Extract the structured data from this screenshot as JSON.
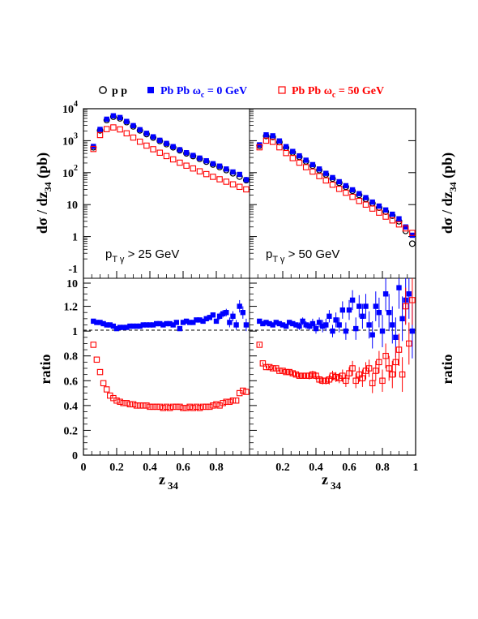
{
  "legend": {
    "pp": "p p",
    "pbpb0_prefix": "Pb Pb ",
    "pbpb0_omega": "ω",
    "pbpb0_sub": "c",
    "pbpb0_suffix": " = 0 GeV",
    "pbpb50_prefix": "Pb Pb ",
    "pbpb50_omega": "ω",
    "pbpb50_sub": "c",
    "pbpb50_suffix": " = 50 GeV"
  },
  "colors": {
    "pp": "#000000",
    "pbpb0": "#0000ff",
    "pbpb50": "#ff0000"
  },
  "axes": {
    "ylabel_top_main": "dσ / dz",
    "ylabel_top_sub": "34",
    "ylabel_top_unit": " (pb)",
    "ylabel_bottom": "ratio",
    "xlabel_main": "z",
    "xlabel_sub": "34",
    "top_yticks": [
      {
        "label": "10",
        "sup": "4",
        "value": 10000
      },
      {
        "label": "10",
        "sup": "3",
        "value": 1000
      },
      {
        "label": "10",
        "sup": "2",
        "value": 100
      },
      {
        "label": "10",
        "sup": "",
        "value": 10
      },
      {
        "label": "1",
        "sup": "",
        "value": 1
      },
      {
        "label": "-1",
        "sup": "",
        "value": 0.1
      }
    ],
    "bottom_yticks": [
      "10",
      "1.2",
      "1",
      "0.8",
      "0.6",
      "0.4",
      "0.2",
      "0"
    ],
    "xticks_left": [
      "0",
      "0.2",
      "0.4",
      "0.6",
      "0.8"
    ],
    "xticks_right": [
      "0.2",
      "0.4",
      "0.6",
      "0.8",
      "1"
    ]
  },
  "panel_labels": {
    "left_prefix": "p",
    "left_sub": "T γ",
    "left_suffix": " > 25 GeV",
    "right_prefix": "p",
    "right_sub": "T γ",
    "right_suffix": " > 50 GeV"
  },
  "chart_data": [
    {
      "type": "scatter",
      "panel": "top-left",
      "xlabel": "z 34",
      "ylabel": "dσ / dz 34 (pb)",
      "yscale": "log",
      "ylim": [
        0.1,
        10000
      ],
      "xlim": [
        0,
        1
      ],
      "series": [
        {
          "name": "p p",
          "marker": "open-circle",
          "x": [
            0.06,
            0.1,
            0.14,
            0.18,
            0.22,
            0.26,
            0.3,
            0.34,
            0.38,
            0.42,
            0.46,
            0.5,
            0.54,
            0.58,
            0.62,
            0.66,
            0.7,
            0.74,
            0.78,
            0.82,
            0.86,
            0.9,
            0.94,
            0.98
          ],
          "y": [
            620,
            2100,
            4400,
            5600,
            5000,
            3800,
            2800,
            2100,
            1600,
            1250,
            980,
            780,
            620,
            500,
            400,
            330,
            270,
            220,
            180,
            150,
            120,
            95,
            75,
            58
          ]
        },
        {
          "name": "Pb Pb ωc = 0 GeV",
          "marker": "filled-square",
          "x": [
            0.06,
            0.1,
            0.14,
            0.18,
            0.22,
            0.26,
            0.3,
            0.34,
            0.38,
            0.42,
            0.46,
            0.5,
            0.54,
            0.58,
            0.62,
            0.66,
            0.7,
            0.74,
            0.78,
            0.82,
            0.86,
            0.9,
            0.94,
            0.98
          ],
          "y": [
            660,
            2250,
            4700,
            6000,
            5300,
            4000,
            2950,
            2200,
            1700,
            1320,
            1030,
            820,
            650,
            520,
            420,
            345,
            285,
            235,
            190,
            160,
            130,
            105,
            88,
            60
          ]
        },
        {
          "name": "Pb Pb ωc = 50 GeV",
          "marker": "open-square",
          "x": [
            0.06,
            0.1,
            0.14,
            0.18,
            0.22,
            0.26,
            0.3,
            0.34,
            0.38,
            0.42,
            0.46,
            0.5,
            0.54,
            0.58,
            0.62,
            0.66,
            0.7,
            0.74,
            0.78,
            0.82,
            0.86,
            0.9,
            0.94,
            0.98
          ],
          "y": [
            550,
            1500,
            2300,
            2600,
            2250,
            1700,
            1250,
            930,
            700,
            540,
            420,
            330,
            260,
            205,
            165,
            135,
            110,
            90,
            74,
            62,
            52,
            43,
            36,
            30
          ]
        }
      ]
    },
    {
      "type": "scatter",
      "panel": "top-right",
      "xlabel": "z 34",
      "ylabel": "dσ / dz 34 (pb)",
      "yscale": "log",
      "ylim": [
        0.1,
        10000
      ],
      "xlim": [
        0,
        1
      ],
      "series": [
        {
          "name": "p p",
          "marker": "open-circle",
          "x": [
            0.06,
            0.1,
            0.14,
            0.18,
            0.22,
            0.26,
            0.3,
            0.34,
            0.38,
            0.42,
            0.46,
            0.5,
            0.54,
            0.58,
            0.62,
            0.66,
            0.7,
            0.74,
            0.78,
            0.82,
            0.86,
            0.9,
            0.94,
            0.98
          ],
          "y": [
            700,
            1400,
            1300,
            900,
            600,
            430,
            310,
            225,
            165,
            120,
            88,
            65,
            48,
            36,
            27,
            20,
            15,
            11,
            8,
            6,
            4.5,
            3,
            1.5,
            0.6
          ]
        },
        {
          "name": "Pb Pb ωc = 0 GeV",
          "marker": "filled-square",
          "x": [
            0.06,
            0.1,
            0.14,
            0.18,
            0.22,
            0.26,
            0.3,
            0.34,
            0.38,
            0.42,
            0.46,
            0.5,
            0.54,
            0.58,
            0.62,
            0.66,
            0.7,
            0.74,
            0.78,
            0.82,
            0.86,
            0.9,
            0.94,
            0.98
          ],
          "y": [
            740,
            1520,
            1420,
            980,
            650,
            460,
            335,
            245,
            178,
            130,
            95,
            70,
            52,
            39,
            29,
            22,
            16.5,
            12,
            9,
            6.8,
            5,
            3.6,
            2,
            1.1
          ]
        },
        {
          "name": "Pb Pb ωc = 50 GeV",
          "marker": "open-square",
          "x": [
            0.06,
            0.1,
            0.14,
            0.18,
            0.22,
            0.26,
            0.3,
            0.34,
            0.38,
            0.42,
            0.46,
            0.5,
            0.54,
            0.58,
            0.62,
            0.66,
            0.7,
            0.74,
            0.78,
            0.82,
            0.86,
            0.9,
            0.94,
            0.98
          ],
          "y": [
            620,
            1000,
            920,
            620,
            410,
            285,
            205,
            148,
            108,
            78,
            57,
            42,
            31,
            23.5,
            17.5,
            13,
            10,
            7.5,
            5.6,
            4.2,
            3.2,
            2.4,
            1.8,
            1.3
          ]
        }
      ]
    },
    {
      "type": "scatter",
      "panel": "bottom-left",
      "xlabel": "z 34",
      "ylabel": "ratio",
      "ylim": [
        0,
        1.4
      ],
      "xlim": [
        0,
        1
      ],
      "series": [
        {
          "name": "Pb Pb ωc = 0 GeV",
          "marker": "filled-square",
          "x": [
            0.06,
            0.08,
            0.1,
            0.12,
            0.14,
            0.16,
            0.18,
            0.2,
            0.22,
            0.24,
            0.26,
            0.28,
            0.3,
            0.32,
            0.34,
            0.36,
            0.38,
            0.4,
            0.42,
            0.44,
            0.46,
            0.48,
            0.5,
            0.52,
            0.54,
            0.56,
            0.58,
            0.6,
            0.62,
            0.64,
            0.66,
            0.68,
            0.7,
            0.72,
            0.74,
            0.76,
            0.78,
            0.8,
            0.82,
            0.84,
            0.86,
            0.88,
            0.9,
            0.92,
            0.94,
            0.96,
            0.98
          ],
          "y": [
            1.08,
            1.07,
            1.07,
            1.06,
            1.05,
            1.05,
            1.04,
            1.02,
            1.03,
            1.03,
            1.03,
            1.04,
            1.04,
            1.04,
            1.04,
            1.05,
            1.05,
            1.05,
            1.05,
            1.06,
            1.06,
            1.05,
            1.06,
            1.06,
            1.05,
            1.07,
            1.02,
            1.07,
            1.08,
            1.07,
            1.07,
            1.09,
            1.09,
            1.08,
            1.1,
            1.11,
            1.13,
            1.08,
            1.12,
            1.14,
            1.15,
            1.07,
            1.12,
            1.05,
            1.2,
            1.15,
            1.05
          ],
          "err": [
            0.01,
            0.01,
            0.01,
            0.01,
            0.01,
            0.01,
            0.01,
            0.01,
            0.01,
            0.01,
            0.01,
            0.01,
            0.01,
            0.01,
            0.01,
            0.01,
            0.01,
            0.01,
            0.01,
            0.01,
            0.01,
            0.01,
            0.01,
            0.01,
            0.01,
            0.01,
            0.01,
            0.01,
            0.01,
            0.01,
            0.01,
            0.01,
            0.01,
            0.01,
            0.02,
            0.02,
            0.02,
            0.02,
            0.03,
            0.03,
            0.03,
            0.04,
            0.04,
            0.04,
            0.05,
            0.05,
            0.05
          ]
        },
        {
          "name": "Pb Pb ωc = 50 GeV",
          "marker": "open-square",
          "x": [
            0.06,
            0.08,
            0.1,
            0.12,
            0.14,
            0.16,
            0.18,
            0.2,
            0.22,
            0.24,
            0.26,
            0.28,
            0.3,
            0.32,
            0.34,
            0.36,
            0.38,
            0.4,
            0.42,
            0.44,
            0.46,
            0.48,
            0.5,
            0.52,
            0.54,
            0.56,
            0.58,
            0.6,
            0.62,
            0.64,
            0.66,
            0.68,
            0.7,
            0.72,
            0.74,
            0.76,
            0.78,
            0.8,
            0.82,
            0.84,
            0.86,
            0.88,
            0.9,
            0.92,
            0.94,
            0.96,
            0.98
          ],
          "y": [
            0.89,
            0.77,
            0.67,
            0.58,
            0.53,
            0.48,
            0.46,
            0.44,
            0.43,
            0.42,
            0.42,
            0.41,
            0.41,
            0.4,
            0.4,
            0.4,
            0.4,
            0.39,
            0.39,
            0.39,
            0.39,
            0.38,
            0.39,
            0.38,
            0.39,
            0.39,
            0.39,
            0.38,
            0.38,
            0.39,
            0.38,
            0.39,
            0.38,
            0.39,
            0.39,
            0.39,
            0.4,
            0.41,
            0.4,
            0.42,
            0.43,
            0.43,
            0.44,
            0.44,
            0.5,
            0.52,
            0.51
          ]
        }
      ]
    },
    {
      "type": "scatter",
      "panel": "bottom-right",
      "xlabel": "z 34",
      "ylabel": "ratio",
      "ylim": [
        0,
        1.4
      ],
      "xlim": [
        0,
        1
      ],
      "series": [
        {
          "name": "Pb Pb ωc = 0 GeV",
          "marker": "filled-square",
          "x": [
            0.06,
            0.08,
            0.1,
            0.12,
            0.14,
            0.16,
            0.18,
            0.2,
            0.22,
            0.24,
            0.26,
            0.28,
            0.3,
            0.32,
            0.34,
            0.36,
            0.38,
            0.4,
            0.42,
            0.44,
            0.46,
            0.48,
            0.5,
            0.52,
            0.54,
            0.56,
            0.58,
            0.6,
            0.62,
            0.64,
            0.66,
            0.68,
            0.7,
            0.72,
            0.74,
            0.76,
            0.78,
            0.8,
            0.82,
            0.84,
            0.86,
            0.88,
            0.9,
            0.92,
            0.94,
            0.96,
            0.98
          ],
          "y": [
            1.08,
            1.06,
            1.07,
            1.06,
            1.05,
            1.07,
            1.06,
            1.05,
            1.04,
            1.07,
            1.06,
            1.05,
            1.04,
            1.08,
            1.05,
            1.04,
            1.06,
            1.02,
            1.07,
            1.04,
            1.05,
            1.12,
            1.0,
            1.09,
            1.05,
            1.17,
            1.0,
            1.17,
            1.25,
            1.02,
            1.2,
            1.12,
            1.2,
            1.05,
            0.97,
            1.2,
            1.15,
            1.0,
            1.3,
            1.15,
            1.05,
            0.95,
            1.35,
            1.1,
            1.25,
            1.3,
            1.0
          ],
          "err": [
            0.01,
            0.01,
            0.01,
            0.01,
            0.01,
            0.01,
            0.02,
            0.02,
            0.02,
            0.02,
            0.02,
            0.02,
            0.03,
            0.03,
            0.03,
            0.03,
            0.04,
            0.04,
            0.04,
            0.05,
            0.05,
            0.05,
            0.05,
            0.06,
            0.06,
            0.07,
            0.07,
            0.08,
            0.08,
            0.09,
            0.09,
            0.1,
            0.1,
            0.11,
            0.11,
            0.12,
            0.12,
            0.13,
            0.14,
            0.15,
            0.15,
            0.16,
            0.17,
            0.18,
            0.19,
            0.2,
            0.22
          ]
        },
        {
          "name": "Pb Pb ωc = 50 GeV",
          "marker": "open-square",
          "x": [
            0.06,
            0.08,
            0.1,
            0.12,
            0.14,
            0.16,
            0.18,
            0.2,
            0.22,
            0.24,
            0.26,
            0.28,
            0.3,
            0.32,
            0.34,
            0.36,
            0.38,
            0.4,
            0.42,
            0.44,
            0.46,
            0.48,
            0.5,
            0.52,
            0.54,
            0.56,
            0.58,
            0.6,
            0.62,
            0.64,
            0.66,
            0.68,
            0.7,
            0.72,
            0.74,
            0.76,
            0.78,
            0.8,
            0.82,
            0.84,
            0.86,
            0.88,
            0.9,
            0.92,
            0.94,
            0.96,
            0.98
          ],
          "y": [
            0.89,
            0.74,
            0.71,
            0.71,
            0.7,
            0.7,
            0.68,
            0.68,
            0.67,
            0.67,
            0.66,
            0.65,
            0.64,
            0.64,
            0.64,
            0.64,
            0.65,
            0.64,
            0.61,
            0.6,
            0.6,
            0.61,
            0.64,
            0.63,
            0.62,
            0.64,
            0.6,
            0.66,
            0.7,
            0.6,
            0.65,
            0.62,
            0.68,
            0.7,
            0.58,
            0.68,
            0.75,
            0.6,
            0.8,
            0.7,
            0.65,
            0.75,
            0.85,
            0.65,
            1.2,
            0.9,
            1.25
          ],
          "err": [
            0.01,
            0.01,
            0.01,
            0.01,
            0.01,
            0.01,
            0.01,
            0.01,
            0.02,
            0.02,
            0.02,
            0.02,
            0.02,
            0.02,
            0.02,
            0.03,
            0.03,
            0.03,
            0.03,
            0.03,
            0.03,
            0.04,
            0.04,
            0.04,
            0.04,
            0.05,
            0.05,
            0.05,
            0.06,
            0.06,
            0.06,
            0.07,
            0.07,
            0.07,
            0.08,
            0.08,
            0.09,
            0.09,
            0.1,
            0.1,
            0.11,
            0.12,
            0.13,
            0.14,
            0.15,
            0.17,
            0.2
          ]
        }
      ]
    }
  ]
}
